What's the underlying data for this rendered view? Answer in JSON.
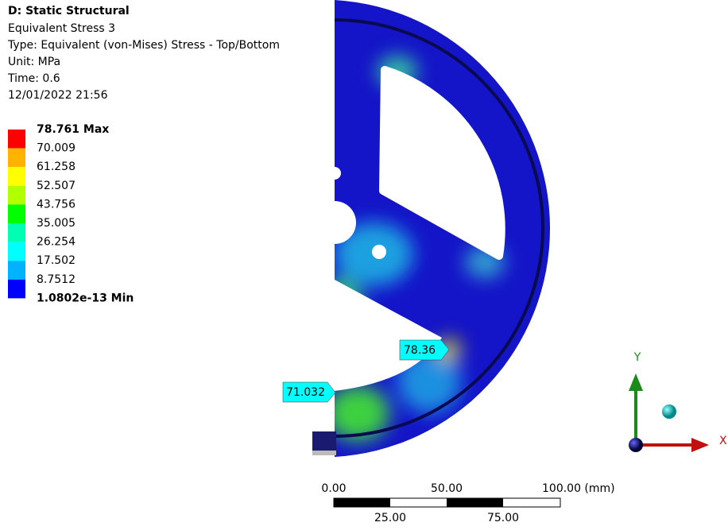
{
  "header": {
    "analysis": "D: Static Structural",
    "result": "Equivalent Stress 3",
    "type": "Type: Equivalent (von-Mises) Stress - Top/Bottom",
    "unit": "Unit: MPa",
    "time": "Time: 0.6",
    "date": "12/01/2022 21:56"
  },
  "legend": {
    "labels": [
      "78.761 Max",
      "70.009",
      "61.258",
      "52.507",
      "43.756",
      "35.005",
      "26.254",
      "17.502",
      "8.7512",
      "1.0802e-13 Min"
    ],
    "colors": [
      "#ff0000",
      "#ffb200",
      "#ffff00",
      "#b2ff00",
      "#00ff00",
      "#00ffb2",
      "#00ffff",
      "#00b2ff",
      "#0000ff"
    ]
  },
  "probes": [
    "78.36",
    "71.032"
  ],
  "scale": {
    "top": [
      "0.00",
      "50.00",
      "100.00 (mm)"
    ],
    "bottom": [
      "25.00",
      "75.00"
    ]
  },
  "triad": {
    "y": "Y",
    "x": "X"
  }
}
